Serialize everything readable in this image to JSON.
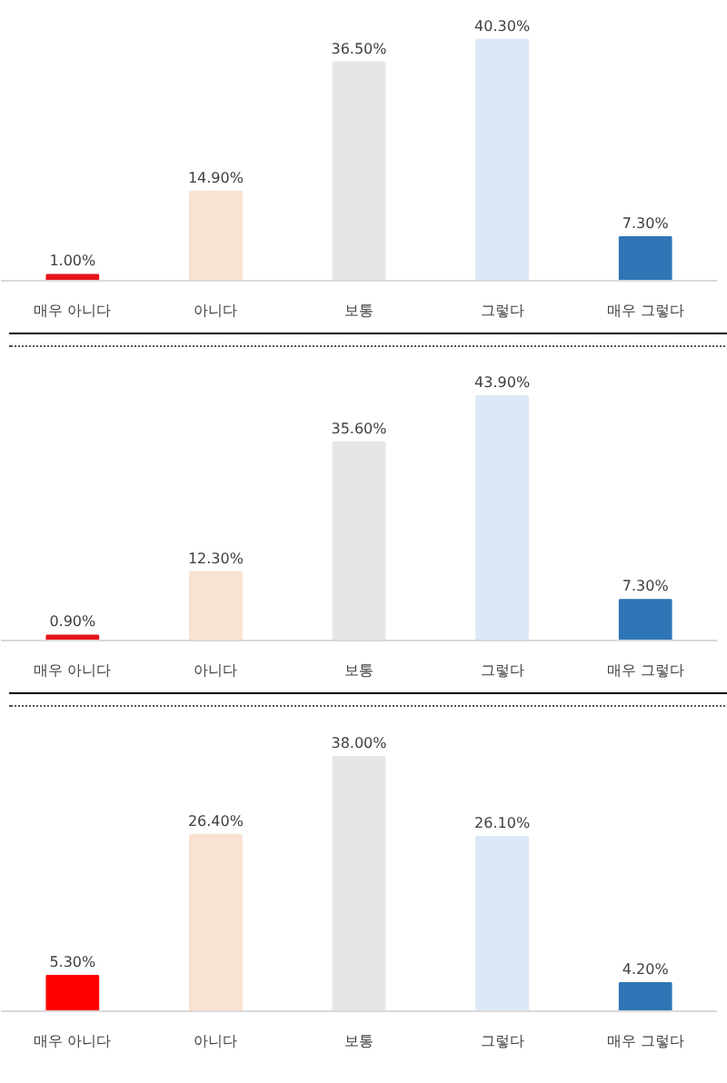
{
  "chart_data": [
    {
      "type": "bar",
      "categories": [
        "매우 아니다",
        "아니다",
        "보통",
        "그렇다",
        "매우 그렇다"
      ],
      "values": [
        1.0,
        14.9,
        36.5,
        40.3,
        7.3
      ],
      "value_labels": [
        "1.00%",
        "14.90%",
        "36.50%",
        "40.30%",
        "7.30%"
      ],
      "colors": [
        "#e8141c",
        "#f9e2d2",
        "#e6e6e6",
        "#dde8f6",
        "#2e75b6"
      ]
    },
    {
      "type": "bar",
      "categories": [
        "매우 아니다",
        "아니다",
        "보통",
        "그렇다",
        "매우 그렇다"
      ],
      "values": [
        0.9,
        12.3,
        35.6,
        43.9,
        7.3
      ],
      "value_labels": [
        "0.90%",
        "12.30%",
        "35.60%",
        "43.90%",
        "7.30%"
      ],
      "colors": [
        "#e8141c",
        "#f9e2d2",
        "#e6e6e6",
        "#dde8f6",
        "#2e75b6"
      ]
    },
    {
      "type": "bar",
      "categories": [
        "매우 아니다",
        "아니다",
        "보통",
        "그렇다",
        "매우 그렇다"
      ],
      "values": [
        5.3,
        26.4,
        38.0,
        26.1,
        4.2
      ],
      "value_labels": [
        "5.30%",
        "26.40%",
        "38.00%",
        "26.10%",
        "4.20%"
      ],
      "colors": [
        "#ff0000",
        "#f9e2d2",
        "#e6e6e6",
        "#dde8f6",
        "#2e75b6"
      ]
    }
  ]
}
